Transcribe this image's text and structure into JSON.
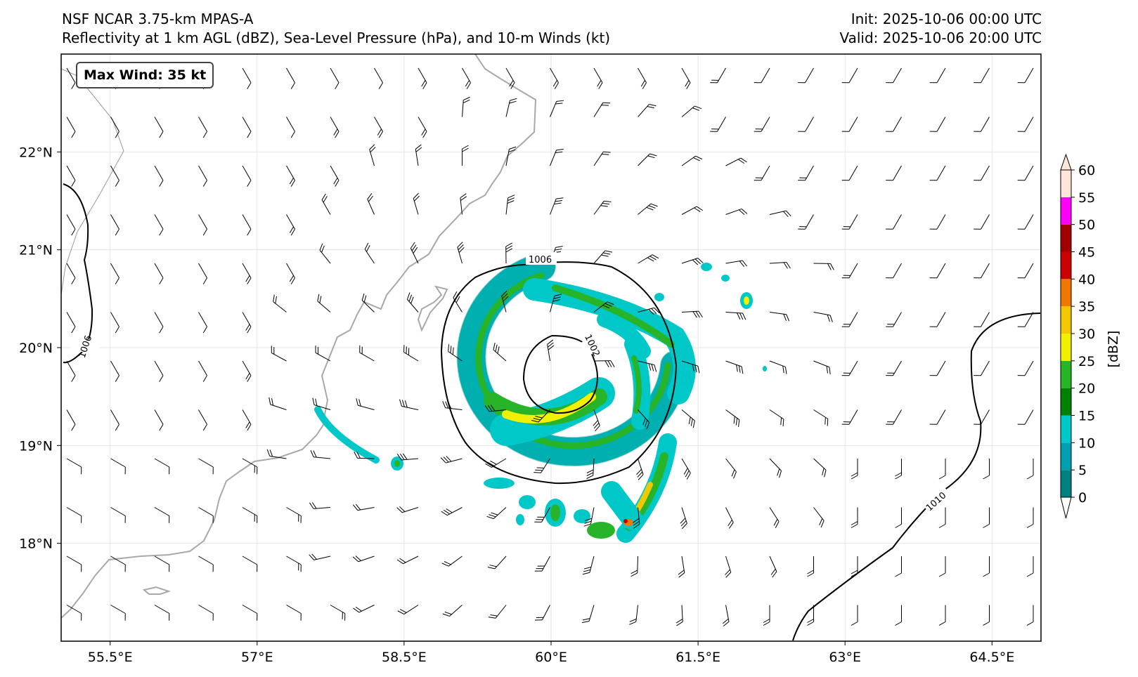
{
  "header": {
    "model": "NSF NCAR 3.75-km MPAS-A",
    "fields": "Reflectivity at 1 km AGL (dBZ), Sea-Level Pressure (hPa), and 10-m Winds (kt)",
    "init": "Init: 2025-10-06 00:00 UTC",
    "valid": "Valid: 2025-10-06 20:00 UTC"
  },
  "badge": {
    "text": "Max Wind: 35 kt"
  },
  "axes": {
    "x_ticks": [
      "55.5°E",
      "57°E",
      "58.5°E",
      "60°E",
      "61.5°E",
      "63°E",
      "64.5°E"
    ],
    "y_ticks": [
      "22°N",
      "21°N",
      "20°N",
      "19°N",
      "18°N"
    ],
    "lon_range": [
      55.0,
      65.0
    ],
    "lat_range": [
      17.0,
      23.0
    ],
    "gridlines": true
  },
  "isobars": [
    {
      "label": "1006"
    },
    {
      "label": "1002"
    },
    {
      "label": "1006"
    },
    {
      "label": "1010"
    }
  ],
  "colorbar": {
    "title": "[dBZ]",
    "ticks": [
      "0",
      "5",
      "10",
      "15",
      "20",
      "25",
      "30",
      "35",
      "40",
      "45",
      "50",
      "55",
      "60"
    ],
    "colors": [
      "#008080",
      "#00a0b0",
      "#00c8c8",
      "#008000",
      "#28b428",
      "#f0f000",
      "#f0c800",
      "#f07800",
      "#c80000",
      "#a00000",
      "#ff00ff",
      "#ffe6d8"
    ]
  },
  "storm": {
    "center_lon": 60.1,
    "center_lat": 19.7
  }
}
